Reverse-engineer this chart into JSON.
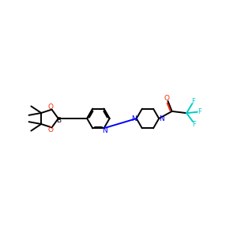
{
  "background_color": "#ffffff",
  "figsize": [
    3.0,
    3.0
  ],
  "dpi": 100,
  "colors": {
    "black": "#000000",
    "red": "#ff2200",
    "blue": "#0000ff",
    "cyan": "#00cccc"
  },
  "line_width": 1.4,
  "xlim": [
    0,
    10.5
  ],
  "ylim": [
    1.5,
    4.5
  ]
}
